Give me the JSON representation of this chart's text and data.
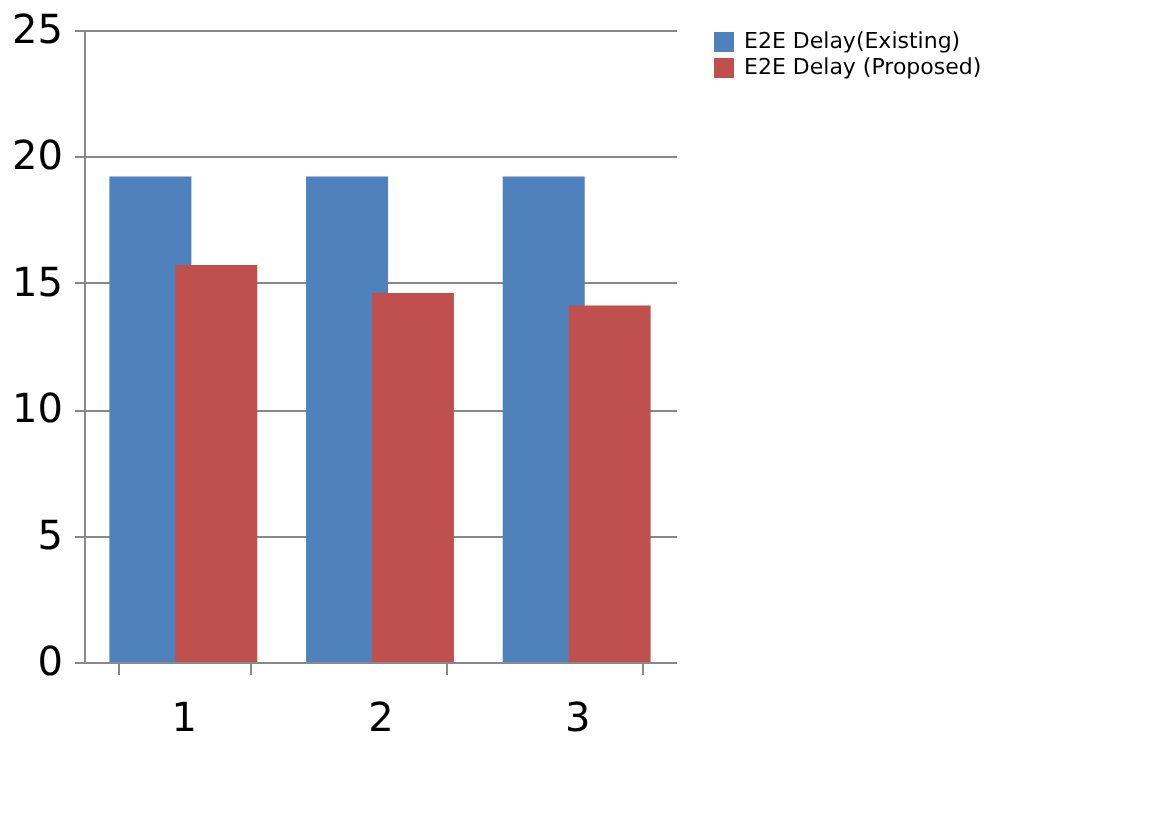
{
  "chart_data": {
    "type": "bar",
    "categories": [
      "1",
      "2",
      "3"
    ],
    "series": [
      {
        "name": "E2E Delay(Existing)",
        "color": "#4f81bd",
        "values": [
          19.2,
          19.2,
          19.2
        ]
      },
      {
        "name": "E2E Delay (Proposed)",
        "color": "#c0504d",
        "values": [
          15.7,
          14.6,
          14.1
        ]
      }
    ],
    "ylim": [
      0,
      25
    ],
    "yticks": [
      0,
      5,
      10,
      15,
      20,
      25
    ],
    "grid": "y",
    "legend": "right"
  }
}
